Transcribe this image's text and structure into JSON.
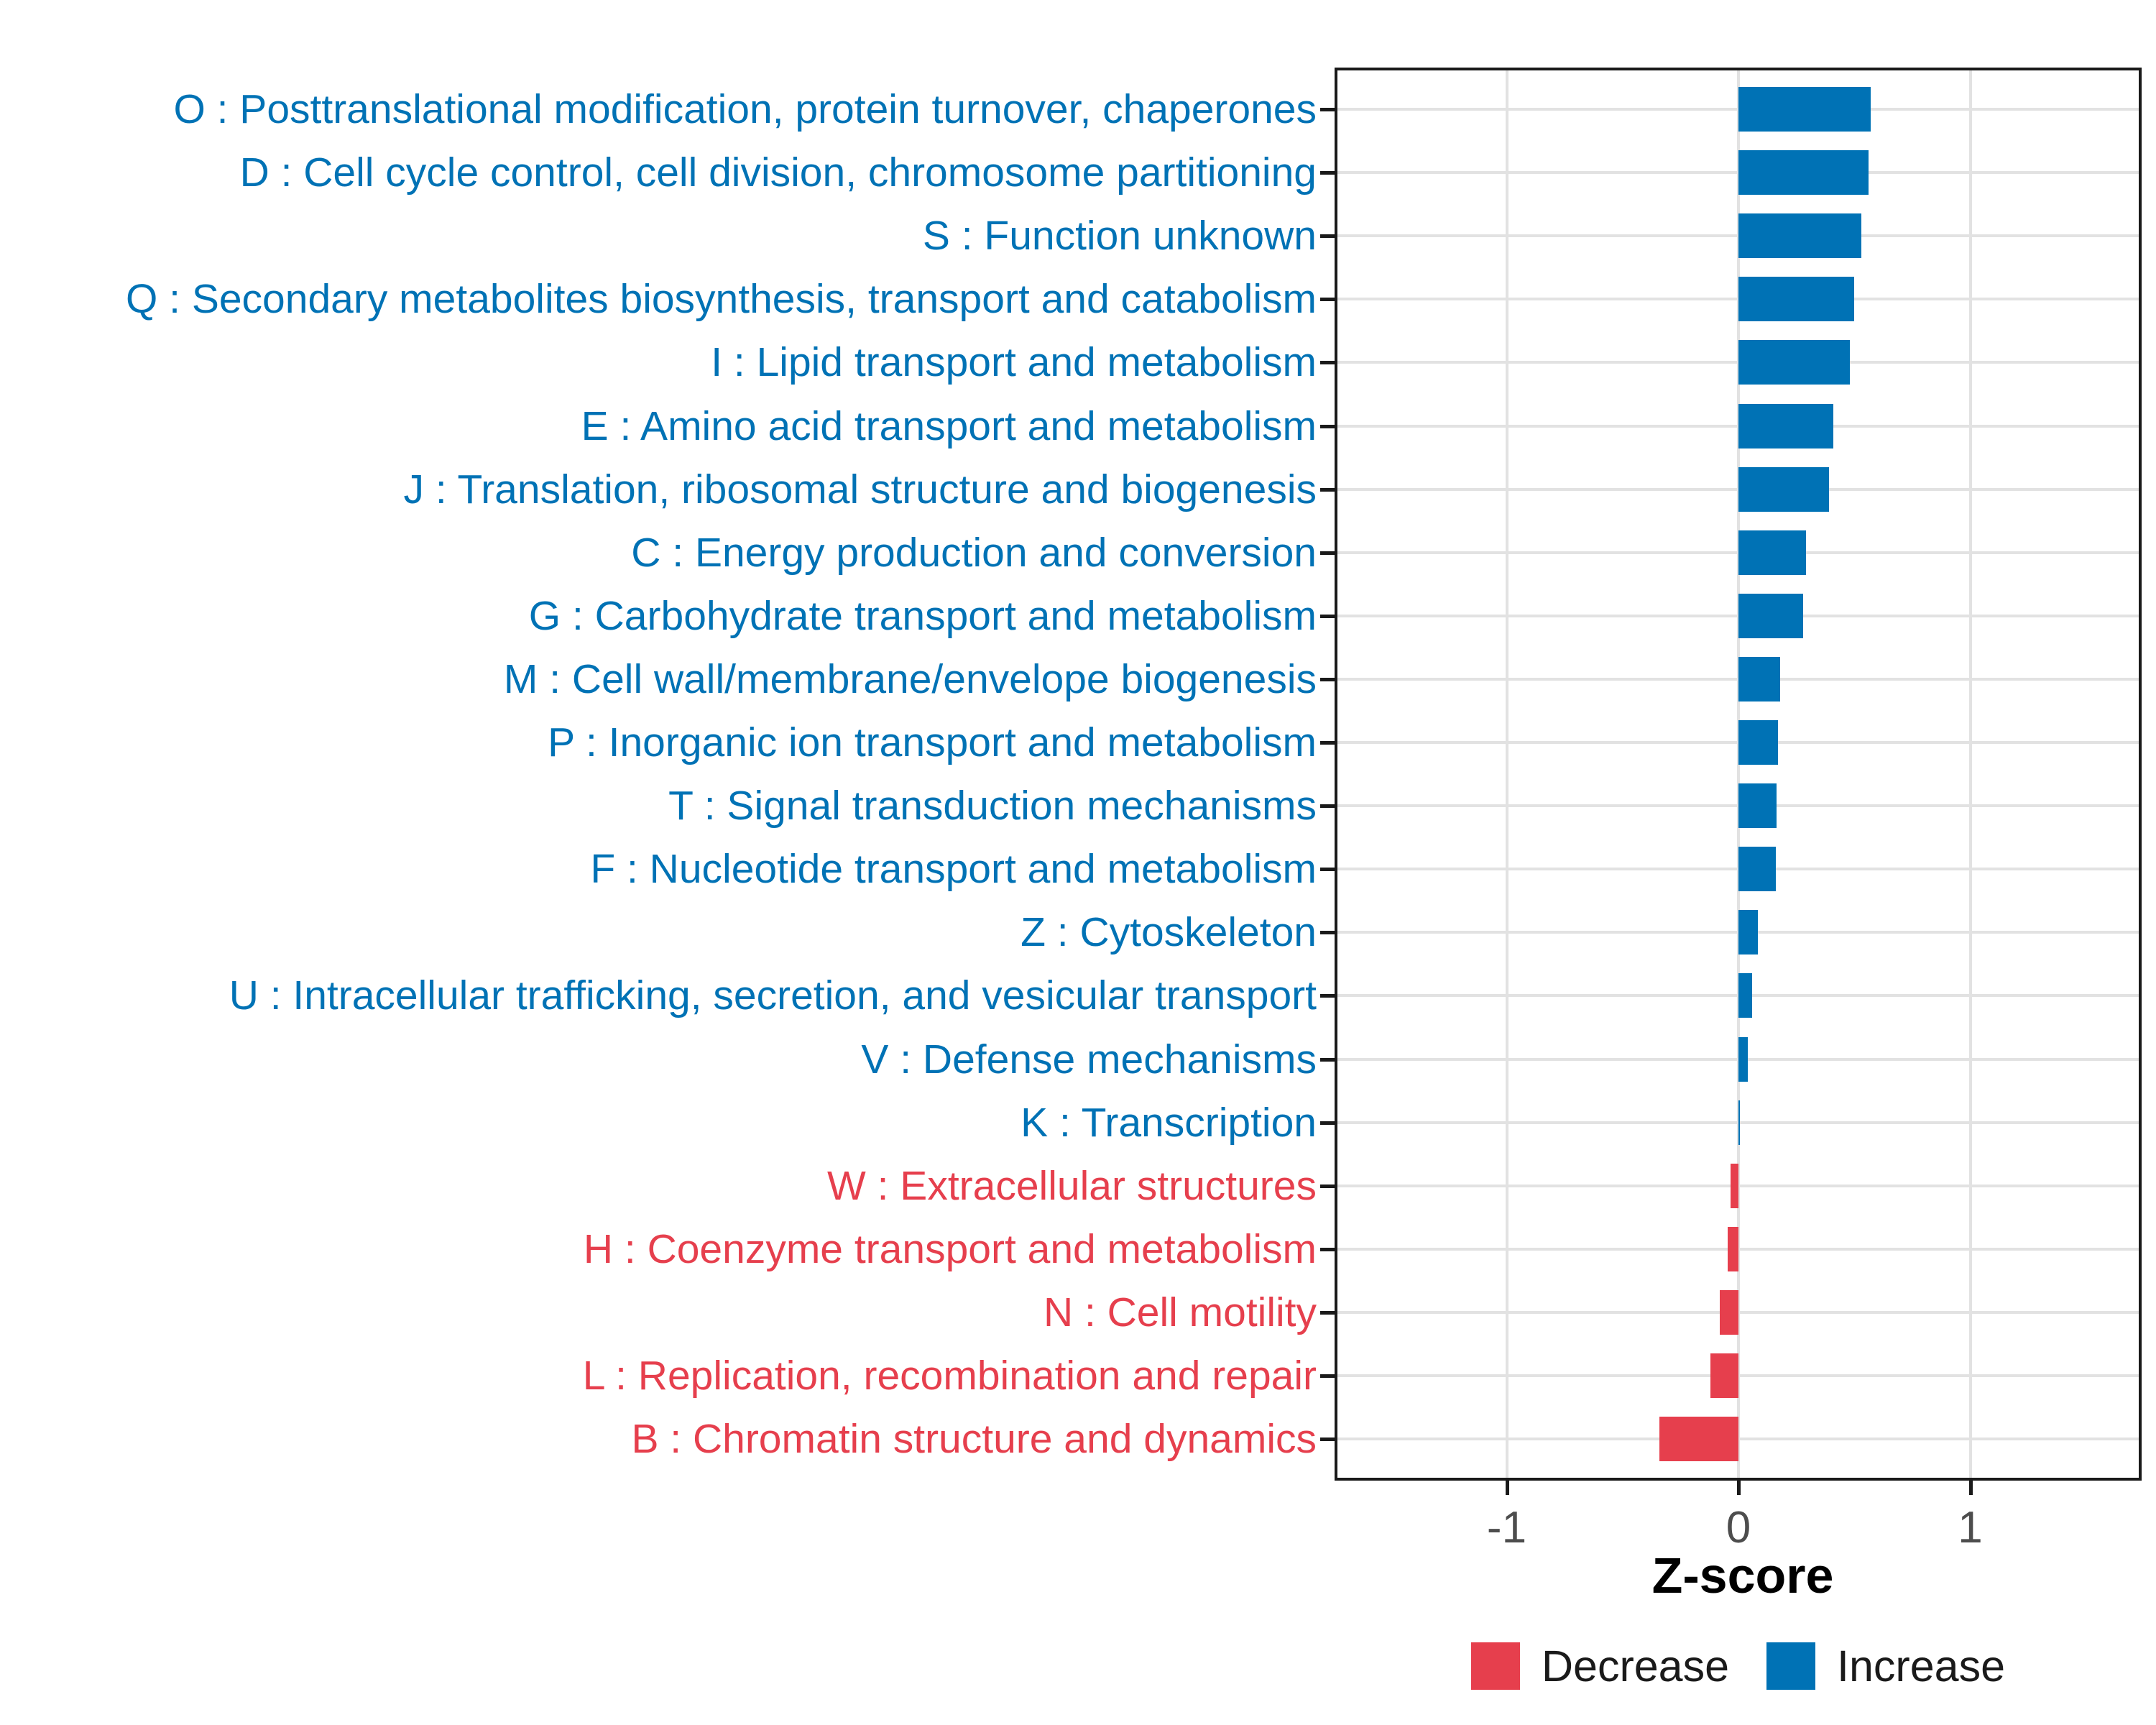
{
  "chart_data": {
    "type": "bar",
    "orientation": "horizontal",
    "title": "",
    "xlabel": "Z-score",
    "xlim": [
      -1.73,
      1.73
    ],
    "x_ticks": [
      {
        "value": -1,
        "label": "-1"
      },
      {
        "value": 0,
        "label": "0"
      },
      {
        "value": 1,
        "label": "1"
      }
    ],
    "grid": "major gridlines only; vertical at -1,0,1 and horizontal at each category",
    "legend_position": "bottom-center-under-panel",
    "categories": [
      {
        "code": "O",
        "label": "O : Posttranslational modification, protein turnover, chaperones",
        "value": 0.57,
        "direction": "Increase"
      },
      {
        "code": "D",
        "label": "D : Cell cycle control, cell division, chromosome partitioning",
        "value": 0.56,
        "direction": "Increase"
      },
      {
        "code": "S",
        "label": "S : Function unknown",
        "value": 0.53,
        "direction": "Increase"
      },
      {
        "code": "Q",
        "label": "Q : Secondary metabolites biosynthesis, transport and catabolism",
        "value": 0.5,
        "direction": "Increase"
      },
      {
        "code": "I",
        "label": "I : Lipid transport and metabolism",
        "value": 0.48,
        "direction": "Increase"
      },
      {
        "code": "E",
        "label": "E : Amino acid transport and metabolism",
        "value": 0.41,
        "direction": "Increase"
      },
      {
        "code": "J",
        "label": "J : Translation, ribosomal structure and biogenesis",
        "value": 0.39,
        "direction": "Increase"
      },
      {
        "code": "C",
        "label": "C : Energy production and conversion",
        "value": 0.29,
        "direction": "Increase"
      },
      {
        "code": "G",
        "label": "G : Carbohydrate transport and metabolism",
        "value": 0.28,
        "direction": "Increase"
      },
      {
        "code": "M",
        "label": "M : Cell wall/membrane/envelope biogenesis",
        "value": 0.18,
        "direction": "Increase"
      },
      {
        "code": "P",
        "label": "P : Inorganic ion transport and metabolism",
        "value": 0.17,
        "direction": "Increase"
      },
      {
        "code": "T",
        "label": "T : Signal transduction mechanisms",
        "value": 0.165,
        "direction": "Increase"
      },
      {
        "code": "F",
        "label": "F : Nucleotide transport and metabolism",
        "value": 0.16,
        "direction": "Increase"
      },
      {
        "code": "Z",
        "label": "Z : Cytoskeleton",
        "value": 0.085,
        "direction": "Increase"
      },
      {
        "code": "U",
        "label": "U : Intracellular trafficking, secretion, and vesicular transport",
        "value": 0.06,
        "direction": "Increase"
      },
      {
        "code": "V",
        "label": "V : Defense mechanisms",
        "value": 0.04,
        "direction": "Increase"
      },
      {
        "code": "K",
        "label": "K : Transcription",
        "value": 0.005,
        "direction": "Increase"
      },
      {
        "code": "W",
        "label": "W : Extracellular structures",
        "value": -0.035,
        "direction": "Decrease"
      },
      {
        "code": "H",
        "label": "H : Coenzyme transport and metabolism",
        "value": -0.045,
        "direction": "Decrease"
      },
      {
        "code": "N",
        "label": "N : Cell motility",
        "value": -0.08,
        "direction": "Decrease"
      },
      {
        "code": "L",
        "label": "L : Replication, recombination and repair",
        "value": -0.12,
        "direction": "Decrease"
      },
      {
        "code": "B",
        "label": "B : Chromatin structure and dynamics",
        "value": -0.34,
        "direction": "Decrease"
      }
    ],
    "legend": [
      {
        "label": "Decrease",
        "color": "#e63f4d"
      },
      {
        "label": "Increase",
        "color": "#0072b5"
      }
    ]
  },
  "colors": {
    "increase": "#0072b5",
    "decrease": "#e63f4d",
    "grid": "#e2e2e2",
    "axis_text": "#4d4d4d",
    "panel_border": "#1a1a1a",
    "background": "#ffffff"
  }
}
